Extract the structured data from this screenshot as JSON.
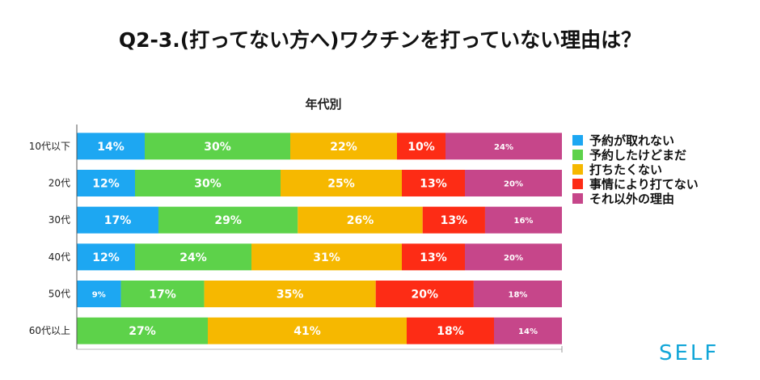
{
  "chart_data": {
    "type": "bar",
    "orientation": "horizontal",
    "stacked": "percent",
    "title": "Q2-3.(打ってない方へ)ワクチンを打っていない理由は？",
    "subtitle": "年代別",
    "categories": [
      "10代以下",
      "20代",
      "30代",
      "40代",
      "50代",
      "60代以上"
    ],
    "series": [
      {
        "name": "予約が取れない",
        "color": "#1da7f2",
        "values": [
          14,
          12,
          17,
          12,
          9,
          0
        ]
      },
      {
        "name": "予約したけどまだ",
        "color": "#5dd24a",
        "values": [
          30,
          30,
          29,
          24,
          17,
          27
        ]
      },
      {
        "name": "打ちたくない",
        "color": "#f6b800",
        "values": [
          22,
          25,
          26,
          31,
          35,
          41
        ]
      },
      {
        "name": "事情により打てない",
        "color": "#fd2c15",
        "values": [
          10,
          13,
          13,
          13,
          20,
          18
        ]
      },
      {
        "name": "それ以外の理由",
        "color": "#c6468a",
        "values": [
          24,
          20,
          16,
          20,
          18,
          14
        ]
      }
    ],
    "value_suffix": "%",
    "legend_position": "right",
    "grid": false
  },
  "brand": {
    "label": "SELF",
    "color": "#12a6d8"
  }
}
